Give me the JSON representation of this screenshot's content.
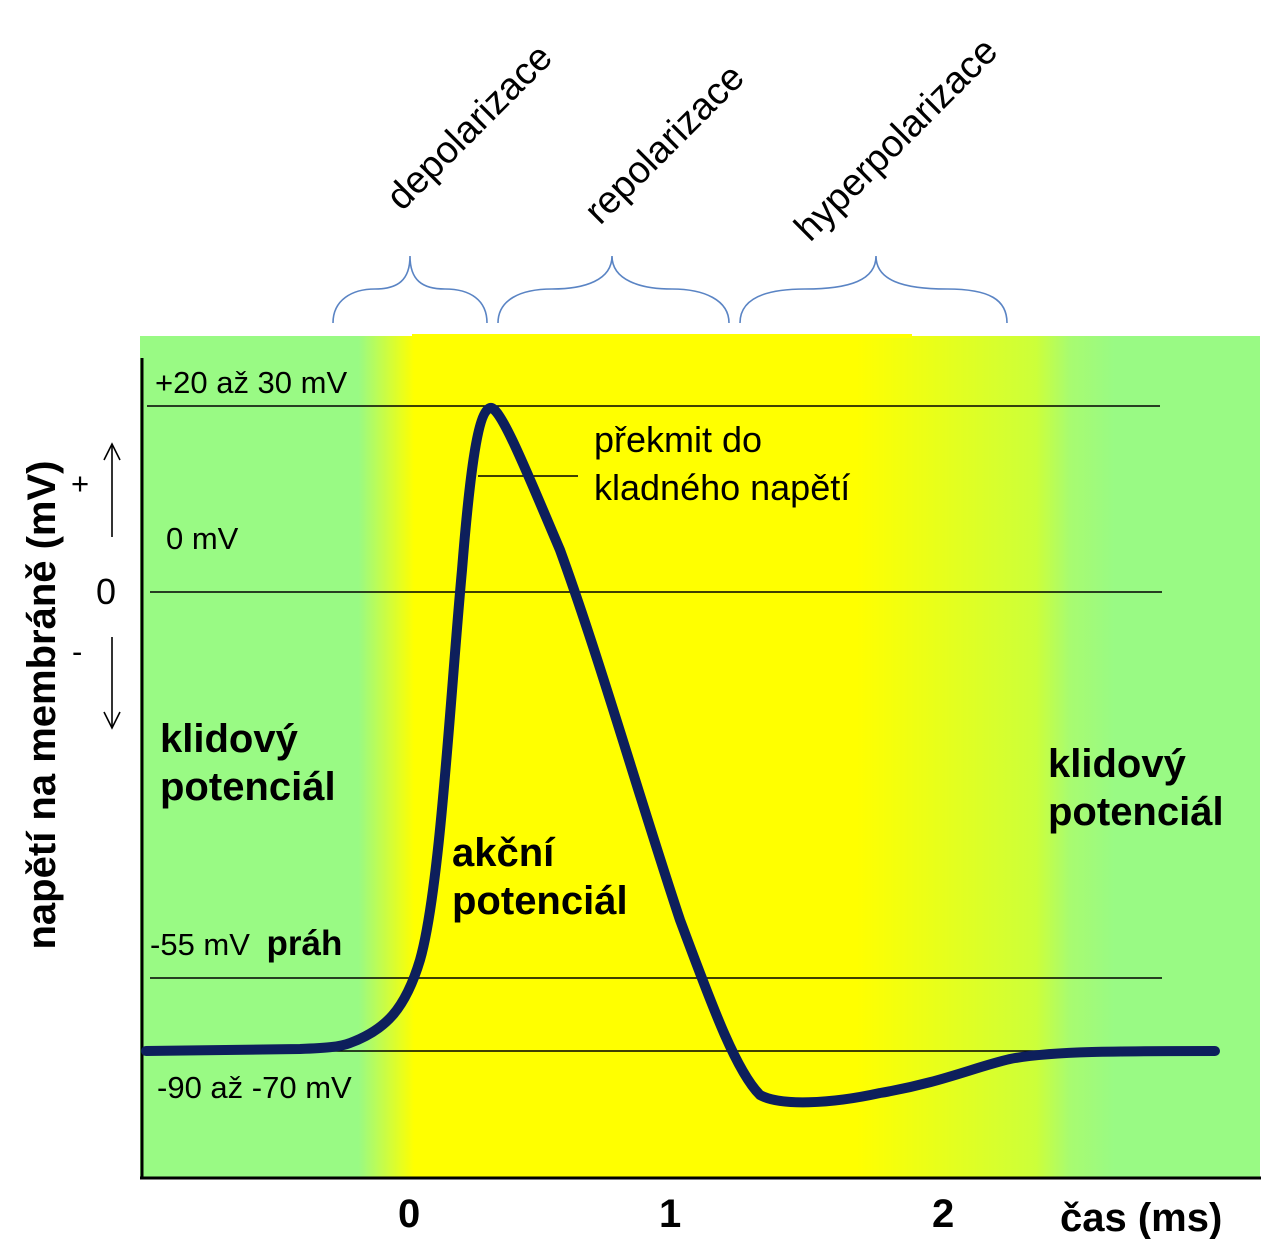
{
  "phases": [
    "depolarizace",
    "repolarizace",
    "hyperpolarizace"
  ],
  "y_axis": {
    "label": "napětí na membráně (mV)",
    "plus": "+",
    "minus": "-",
    "zero": "0"
  },
  "x_axis": {
    "ticks": [
      "0",
      "1",
      "2"
    ],
    "label": "čas (ms)"
  },
  "levels": {
    "peak": "+20 až 30 mV",
    "zero": "0 mV",
    "threshold_value": "-55 mV",
    "threshold_word": "práh",
    "resting": "-90 až -70 mV"
  },
  "annotations": {
    "overshoot_line1": "překmit do",
    "overshoot_line2": "kladného napětí",
    "rest_left_line1": "klidový",
    "rest_left_line2": "potenciál",
    "action_line1": "akční",
    "action_line2": "potenciál",
    "rest_right_line1": "klidový",
    "rest_right_line2": "potenciál"
  },
  "colors": {
    "rest_zone": "#99fa84",
    "action_zone": "#ffff00",
    "curve": "#0d1f5c",
    "brace": "#5a84c4"
  }
}
